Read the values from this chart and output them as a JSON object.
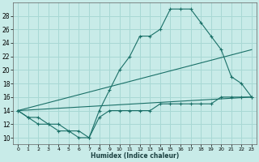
{
  "xlabel": "Humidex (Indice chaleur)",
  "bg_color": "#c8ebe8",
  "grid_color": "#a8d8d4",
  "line_color": "#1a7068",
  "xlim": [
    -0.5,
    23.5
  ],
  "ylim": [
    9,
    30
  ],
  "xticks": [
    0,
    1,
    2,
    3,
    4,
    5,
    6,
    7,
    8,
    9,
    10,
    11,
    12,
    13,
    14,
    15,
    16,
    17,
    18,
    19,
    20,
    21,
    22,
    23
  ],
  "yticks": [
    10,
    12,
    14,
    16,
    18,
    20,
    22,
    24,
    26,
    28
  ],
  "series": [
    {
      "x": [
        0,
        1,
        2,
        3,
        4,
        5,
        6,
        7,
        8,
        9,
        10,
        11,
        12,
        13,
        14,
        15,
        16,
        17,
        18,
        19,
        20,
        21,
        22,
        23
      ],
      "y": [
        14,
        13,
        12,
        12,
        11,
        11,
        10,
        10,
        14,
        17,
        20,
        22,
        25,
        25,
        26,
        29,
        29,
        29,
        27,
        25,
        23,
        19,
        18,
        16
      ],
      "marker": true
    },
    {
      "x": [
        0,
        1,
        2,
        3,
        4,
        5,
        6,
        7,
        8,
        9,
        10,
        11,
        12,
        13,
        14,
        15,
        16,
        17,
        18,
        19,
        20,
        21,
        22,
        23
      ],
      "y": [
        14,
        13,
        13,
        12,
        12,
        11,
        11,
        10,
        13,
        14,
        14,
        14,
        14,
        14,
        15,
        15,
        15,
        15,
        15,
        15,
        16,
        16,
        16,
        16
      ],
      "marker": true
    },
    {
      "x": [
        0,
        23
      ],
      "y": [
        14,
        23
      ],
      "marker": false
    },
    {
      "x": [
        0,
        23
      ],
      "y": [
        14,
        16
      ],
      "marker": false
    }
  ]
}
